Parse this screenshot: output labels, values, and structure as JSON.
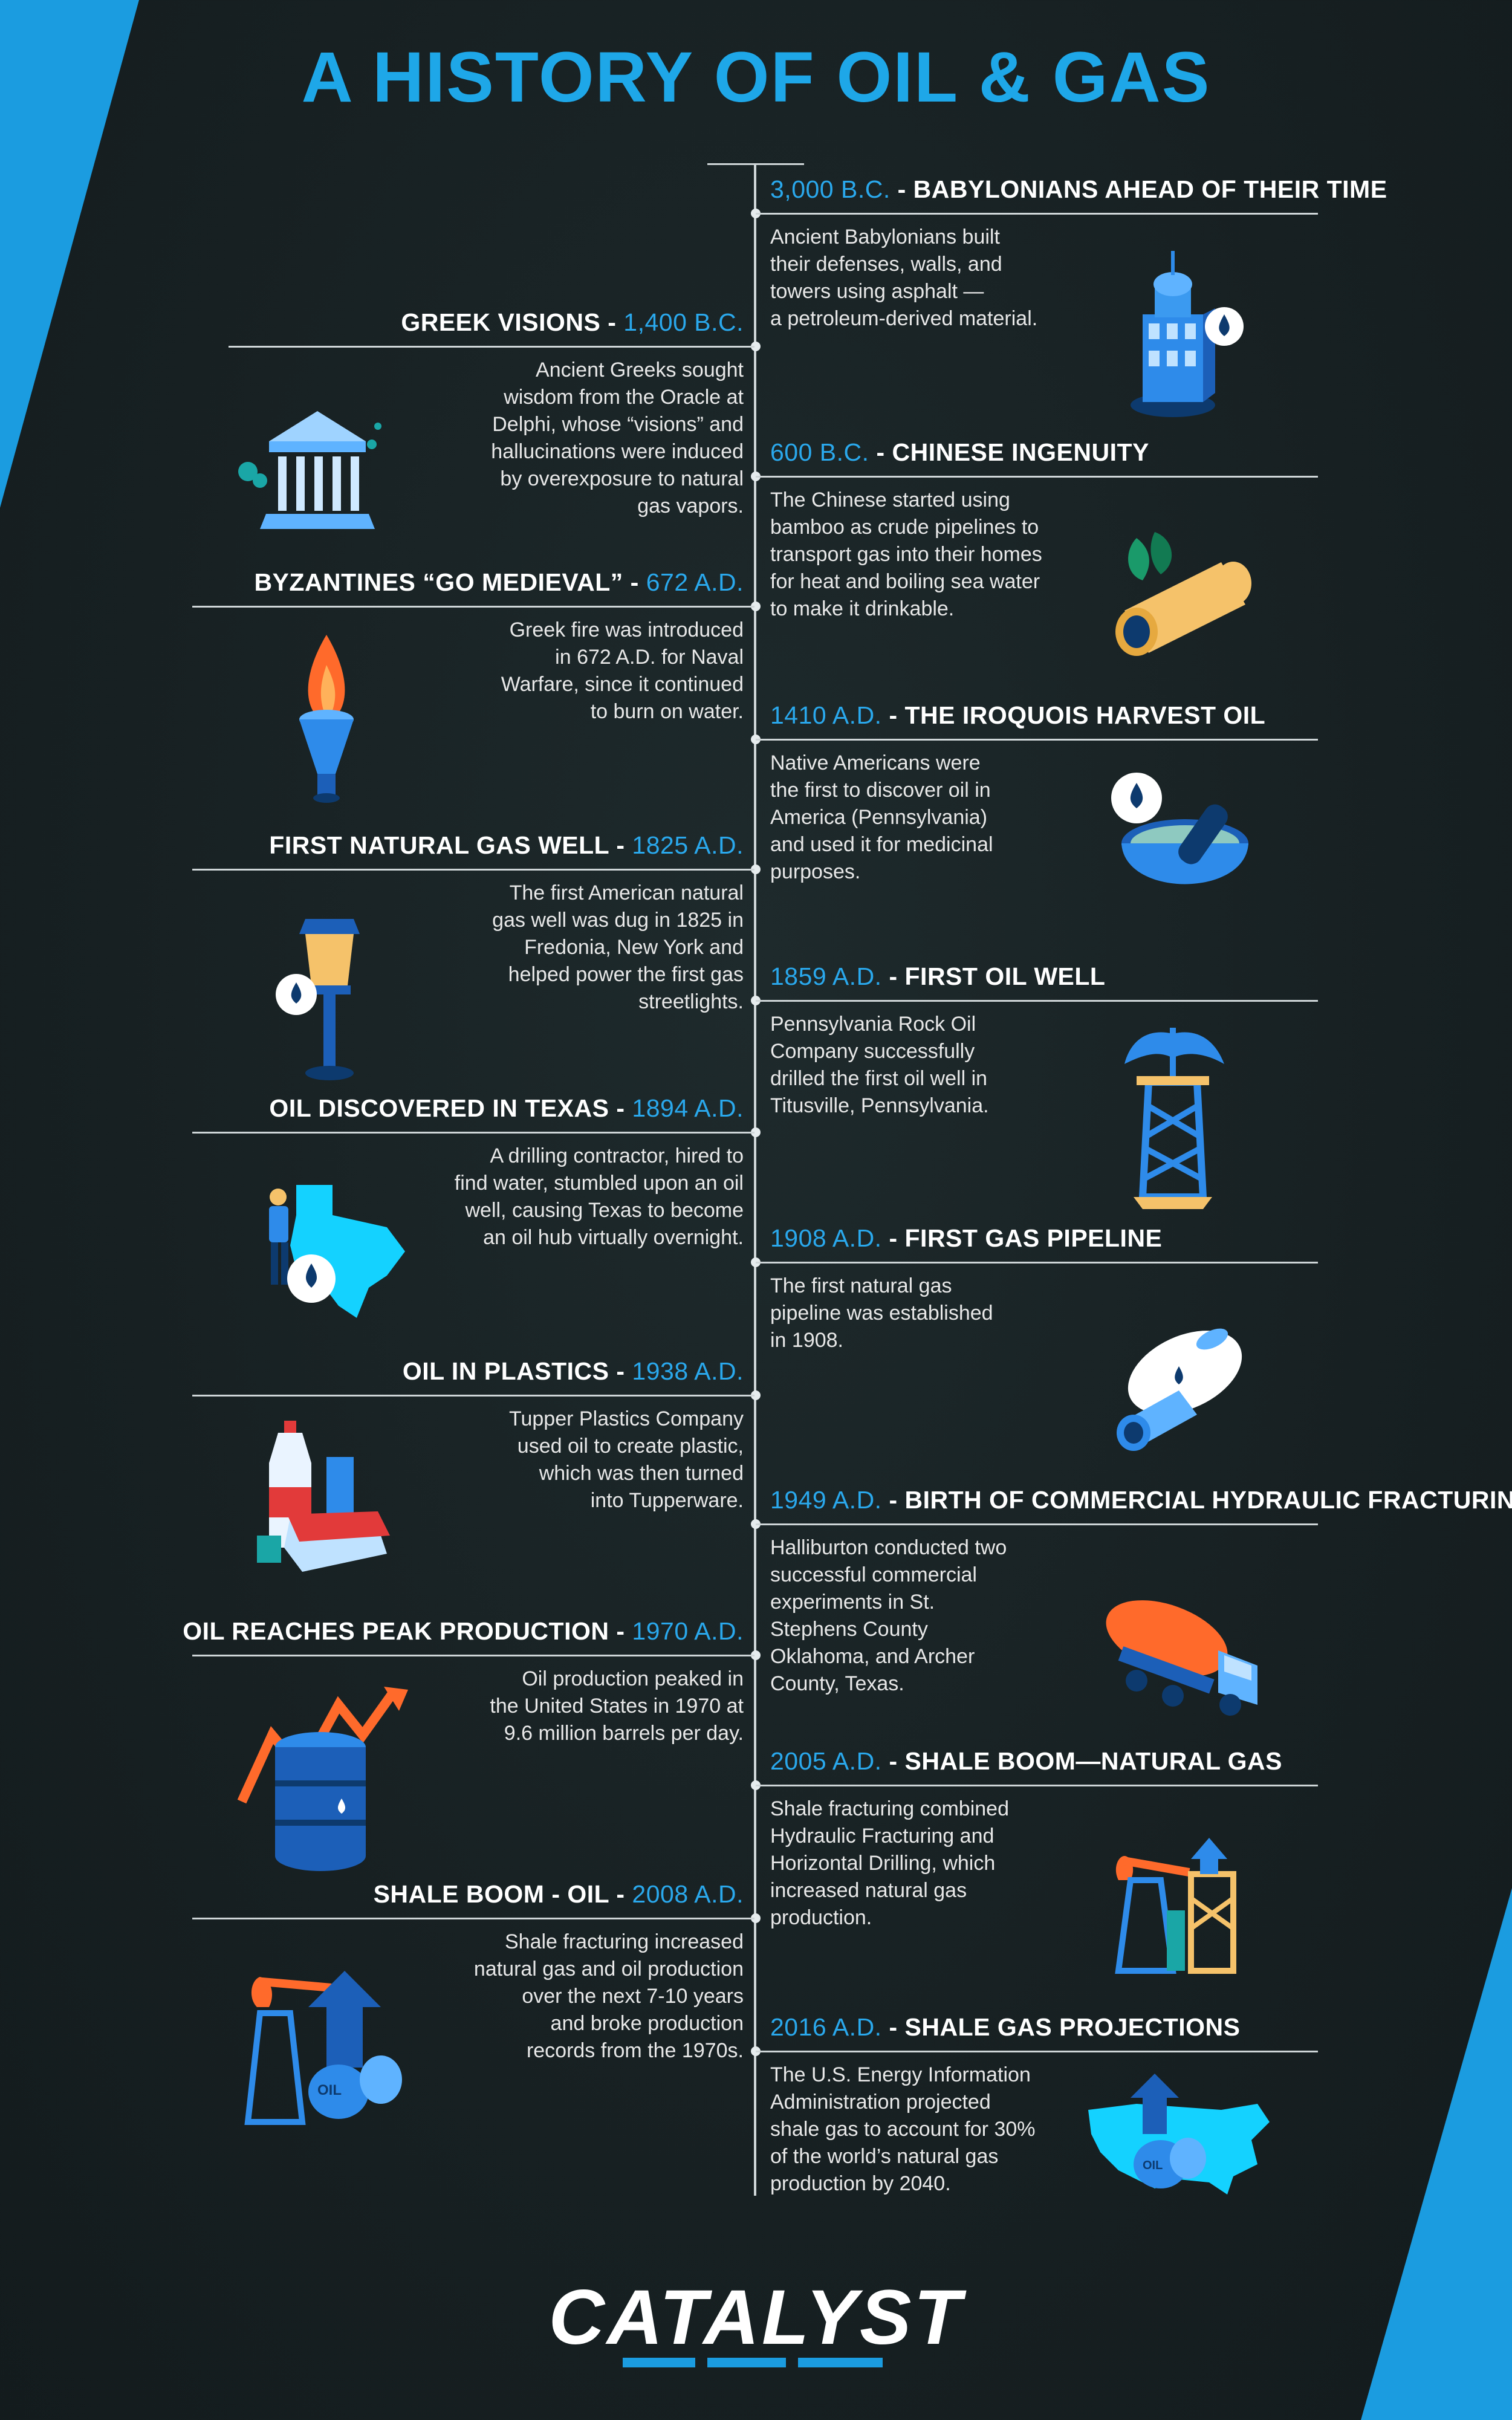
{
  "title": "A HISTORY OF OIL & GAS",
  "logo": "CATALYST",
  "colors": {
    "accent": "#1ea7e8",
    "background": "#172022",
    "text": "#ffffff"
  },
  "right_entries": [
    {
      "date": "3,000 B.C.",
      "label": "BABYLONIANS AHEAD OF THEIR TIME",
      "icon": "tower-icon",
      "lines": [
        "Ancient Babylonians built",
        "their defenses, walls, and",
        "towers using asphalt —",
        "a petroleum-derived material."
      ]
    },
    {
      "date": "600 B.C.",
      "label": "CHINESE INGENUITY",
      "icon": "bamboo-pipe-icon",
      "lines": [
        "The Chinese started using",
        "bamboo as crude pipelines to",
        "transport gas into their homes",
        "for heat and boiling sea water",
        "to make it drinkable."
      ]
    },
    {
      "date": "1410 A.D.",
      "label": "THE IROQUOIS HARVEST OIL",
      "icon": "mortar-pestle-icon",
      "lines": [
        "Native Americans were",
        "the first to discover oil in",
        "America (Pennsylvania)",
        "and used it for medicinal",
        "purposes."
      ]
    },
    {
      "date": "1859 A.D.",
      "label": "FIRST OIL WELL",
      "icon": "oil-derrick-icon",
      "lines": [
        "Pennsylvania Rock Oil",
        "Company successfully",
        "drilled the first oil well in",
        "Titusville, Pennsylvania."
      ]
    },
    {
      "date": "1908 A.D.",
      "label": "FIRST GAS PIPELINE",
      "icon": "gas-tank-pipe-icon",
      "lines": [
        "The first natural gas",
        "pipeline was established",
        "in 1908."
      ]
    },
    {
      "date": "1949 A.D.",
      "label": "BIRTH OF COMMERCIAL HYDRAULIC FRACTURING",
      "icon": "tanker-truck-icon",
      "lines": [
        "Halliburton conducted two",
        "successful commercial",
        "experiments in St.",
        "Stephens County",
        "Oklahoma, and Archer",
        "County, Texas."
      ]
    },
    {
      "date": "2005 A.D.",
      "label": "SHALE BOOM—NATURAL GAS",
      "icon": "pump-jack-rig-icon",
      "lines": [
        "Shale fracturing combined",
        "Hydraulic Fracturing and",
        "Horizontal Drilling, which",
        "increased natural gas",
        "production."
      ]
    },
    {
      "date": "2016 A.D.",
      "label": "SHALE GAS PROJECTIONS",
      "icon": "usa-map-barrel-icon",
      "lines": [
        "The U.S. Energy Information",
        "Administration projected",
        "shale gas to account for 30%",
        "of the world’s natural gas",
        "production by 2040."
      ]
    }
  ],
  "left_entries": [
    {
      "date": "1,400 B.C.",
      "label": "GREEK VISIONS",
      "icon": "greek-temple-icon",
      "lines": [
        "Ancient Greeks sought",
        "wisdom from the Oracle at",
        "Delphi, whose “visions” and",
        "hallucinations were induced",
        "by overexposure to natural",
        "gas vapors."
      ]
    },
    {
      "date": "672 A.D.",
      "label": "BYZANTINES “GO MEDIEVAL”",
      "icon": "torch-icon",
      "lines": [
        "Greek fire was introduced",
        "in 672 A.D. for Naval",
        "Warfare, since it continued",
        "to burn on water."
      ]
    },
    {
      "date": "1825 A.D.",
      "label": "FIRST NATURAL GAS WELL",
      "icon": "gas-streetlight-icon",
      "lines": [
        "The first American natural",
        "gas well was dug in 1825 in",
        "Fredonia, New York and",
        "helped power the first gas",
        "streetlights."
      ]
    },
    {
      "date": "1894 A.D.",
      "label": "OIL DISCOVERED IN TEXAS",
      "icon": "texas-worker-icon",
      "lines": [
        "A drilling contractor, hired to",
        "find water, stumbled upon an oil",
        "well, causing Texas to become",
        "an oil hub virtually overnight."
      ]
    },
    {
      "date": "1938 A.D.",
      "label": "OIL IN PLASTICS",
      "icon": "plastics-icon",
      "lines": [
        "Tupper Plastics Company",
        "used oil to create plastic,",
        "which was then turned",
        "into Tupperware."
      ]
    },
    {
      "date": "1970 A.D.",
      "label": "OIL REACHES PEAK PRODUCTION",
      "icon": "barrel-chart-icon",
      "lines": [
        "Oil production peaked in",
        "the United States in 1970 at",
        "9.6 million barrels per day."
      ]
    },
    {
      "date": "2008 A.D.",
      "label": "SHALE BOOM - OIL",
      "icon": "pump-jack-barrel-icon",
      "lines": [
        "Shale fracturing increased",
        "natural gas and oil production",
        "over the next 7-10 years",
        "and broke production",
        "records from the 1970s."
      ]
    }
  ]
}
